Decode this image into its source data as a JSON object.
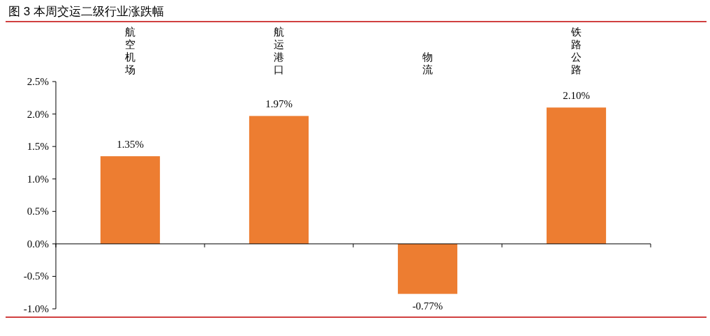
{
  "chart_data": {
    "type": "bar",
    "title": "图 3 本周交运二级行业涨跌幅",
    "categories": [
      "航空机场",
      "航运港口",
      "物流",
      "铁路公路"
    ],
    "values": [
      1.35,
      1.97,
      -0.77,
      2.1
    ],
    "value_labels": [
      "1.35%",
      "1.97%",
      "-0.77%",
      "2.10%"
    ],
    "color": "#ed7d31",
    "ylim": [
      -1.0,
      2.5
    ],
    "yticks": [
      {
        "value": -1.0,
        "label": "-1.0%"
      },
      {
        "value": -0.5,
        "label": "-0.5%"
      },
      {
        "value": 0,
        "label": "0.0%"
      },
      {
        "value": 0.5,
        "label": "0.5%"
      },
      {
        "value": 1.0,
        "label": "1.0%"
      },
      {
        "value": 1.5,
        "label": "1.5%"
      },
      {
        "value": 2.0,
        "label": "2.0%"
      },
      {
        "value": 2.5,
        "label": "2.5%"
      }
    ],
    "legend": false
  }
}
